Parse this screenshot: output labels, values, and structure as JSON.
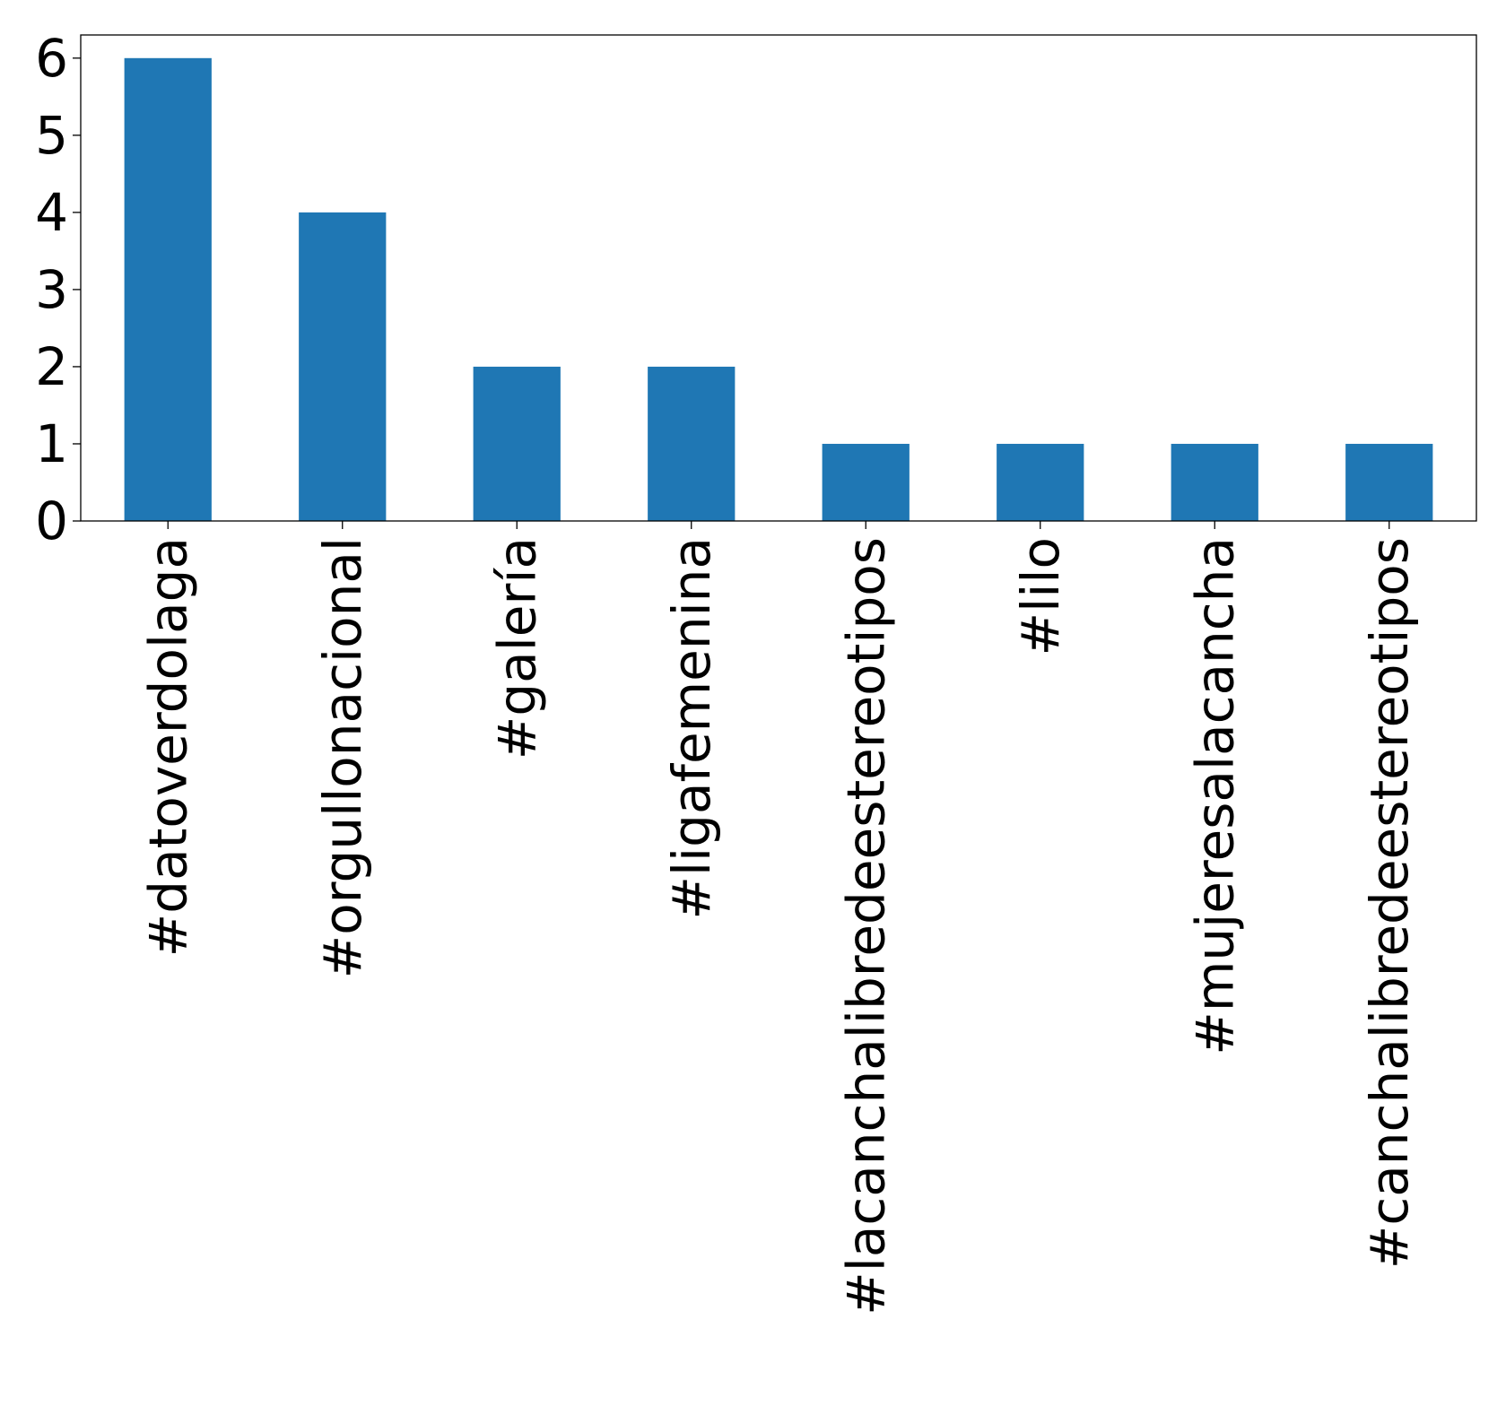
{
  "chart_data": {
    "type": "bar",
    "title": "",
    "xlabel": "",
    "ylabel": "",
    "categories": [
      "#datoverdolaga",
      "#orgullonacional",
      "#galería",
      "#ligafemenina",
      "#lacanchalibredeestereotipos",
      "#lilo",
      "#mujeresalacancha",
      "#canchalibredeestereotipos"
    ],
    "values": [
      6,
      4,
      2,
      2,
      1,
      1,
      1,
      1
    ],
    "ylim": [
      0,
      6.3
    ],
    "yticks": [
      0,
      1,
      2,
      3,
      4,
      5,
      6
    ],
    "grid": false,
    "legend": "none",
    "bar_color": "#1f77b4"
  }
}
